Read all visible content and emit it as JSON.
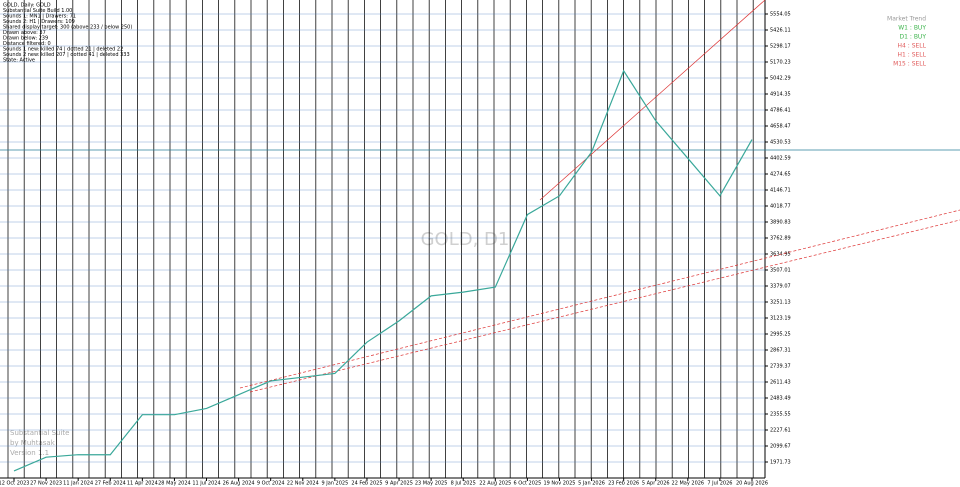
{
  "chart_data": {
    "type": "line",
    "title": "GOLD, D1",
    "categories": [
      "12 Oct 2023",
      "27 Nov 2023",
      "11 Jan 2024",
      "27 Feb 2024",
      "11 Apr 2024",
      "28 May 2024",
      "11 Jul 2024",
      "26 Aug 2024",
      "9 Oct 2024",
      "22 Nov 2024",
      "9 Jan 2025",
      "24 Feb 2025",
      "9 Apr 2025",
      "23 May 2025",
      "8 Jul 2025",
      "22 Aug 2025",
      "6 Oct 2025",
      "19 Nov 2025",
      "5 Jan 2026",
      "23 Feb 2026",
      "5 Apr 2026",
      "22 May 2026",
      "7 Jul 2026",
      "20 Aug 2026"
    ],
    "series": [
      {
        "name": "GOLD",
        "color": "#3aa89a",
        "values": [
          1900,
          2010,
          2030,
          2030,
          2350,
          2350,
          2400,
          2510,
          2620,
          2650,
          2680,
          2930,
          3100,
          3300,
          3330,
          3370,
          3950,
          4100,
          4450,
          5100,
          4700,
          4400,
          4100,
          4550
        ]
      }
    ],
    "ylim": [
      1843.79,
      5666.0
    ],
    "yticks": [
      1971.73,
      2099.67,
      2227.61,
      2355.55,
      2483.49,
      2611.43,
      2739.37,
      2867.31,
      2995.25,
      3123.19,
      3251.13,
      3379.07,
      3507.01,
      3634.95,
      3762.89,
      3890.83,
      4018.77,
      4146.71,
      4274.65,
      4402.59,
      4530.53,
      4658.47,
      4786.41,
      4914.35,
      5042.29,
      5170.23,
      5298.17,
      5426.11,
      5554.05
    ],
    "grid": true
  },
  "info": {
    "lines": [
      "GOLD, Daily: GOLD",
      "Substantial Suite Build 1.00",
      "Sounds 1: MN1 | Drawers: 71",
      "Sounds 2: H1 | Drawers: 109",
      "Shared display target: 300 (above 233 / below 250)",
      "Drawn above: 37",
      "Drawn below: 239",
      "Distance filtered: 0",
      "Sounds 1 new: killed 74 | dotted 21 | deleted 22",
      "Sounds 2 new: killed 207 | dotted 41 | deleted 333",
      "State: Active"
    ]
  },
  "trend": {
    "title": "Market Trend",
    "rows": [
      {
        "label": "W1 : BUY",
        "color": "#3cb44b"
      },
      {
        "label": "D1 : BUY",
        "color": "#3cb44b"
      },
      {
        "label": "H4 : SELL",
        "color": "#e05a5a"
      },
      {
        "label": "H1 : SELL",
        "color": "#e05a5a"
      },
      {
        "label": "M15 : SELL",
        "color": "#e05a5a"
      }
    ]
  },
  "brand": {
    "lines": [
      "Substantial Suite",
      "by Muhtasak",
      "Version 1.1"
    ]
  }
}
